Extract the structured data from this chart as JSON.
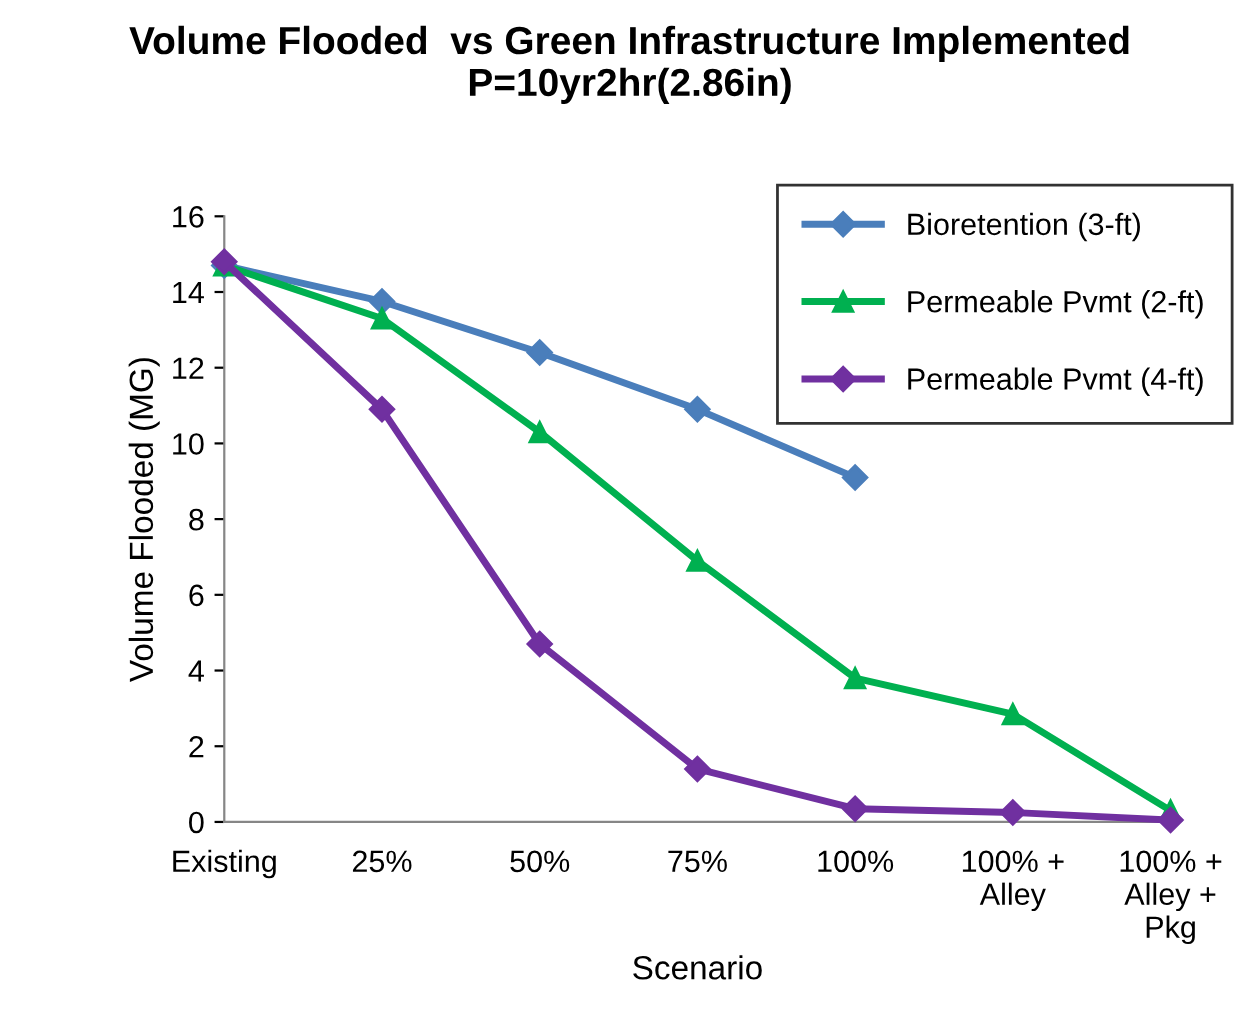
{
  "chart_data": {
    "type": "line",
    "title": "Volume Flooded  vs Green Infrastructure Implemented\nP=10yr2hr(2.86in)",
    "xlabel": "Scenario",
    "ylabel": "Volume Flooded (MG)",
    "categories": [
      "Existing",
      "25%",
      "50%",
      "75%",
      "100%",
      "100% +\nAlley",
      "100% +\nAlley +\nPkg"
    ],
    "series": [
      {
        "name": "Bioretention (3-ft)",
        "color": "#4a7ebb",
        "marker": "diamond",
        "values": [
          14.7,
          13.75,
          12.4,
          10.9,
          9.1,
          null,
          null
        ]
      },
      {
        "name": "Permeable Pvmt (2-ft)",
        "color": "#00b050",
        "marker": "triangle",
        "values": [
          14.7,
          13.3,
          10.3,
          6.9,
          3.8,
          2.85,
          0.3
        ]
      },
      {
        "name": "Permeable Pvmt (4-ft)",
        "color": "#7030a0",
        "marker": "diamond",
        "values": [
          14.8,
          10.9,
          4.7,
          1.4,
          0.35,
          0.25,
          0.05
        ]
      }
    ],
    "ylim": [
      0,
      16
    ],
    "yticks": [
      0,
      2,
      4,
      6,
      8,
      10,
      12,
      14,
      16
    ],
    "grid": false,
    "legend": "top right",
    "line_style": "solid"
  }
}
